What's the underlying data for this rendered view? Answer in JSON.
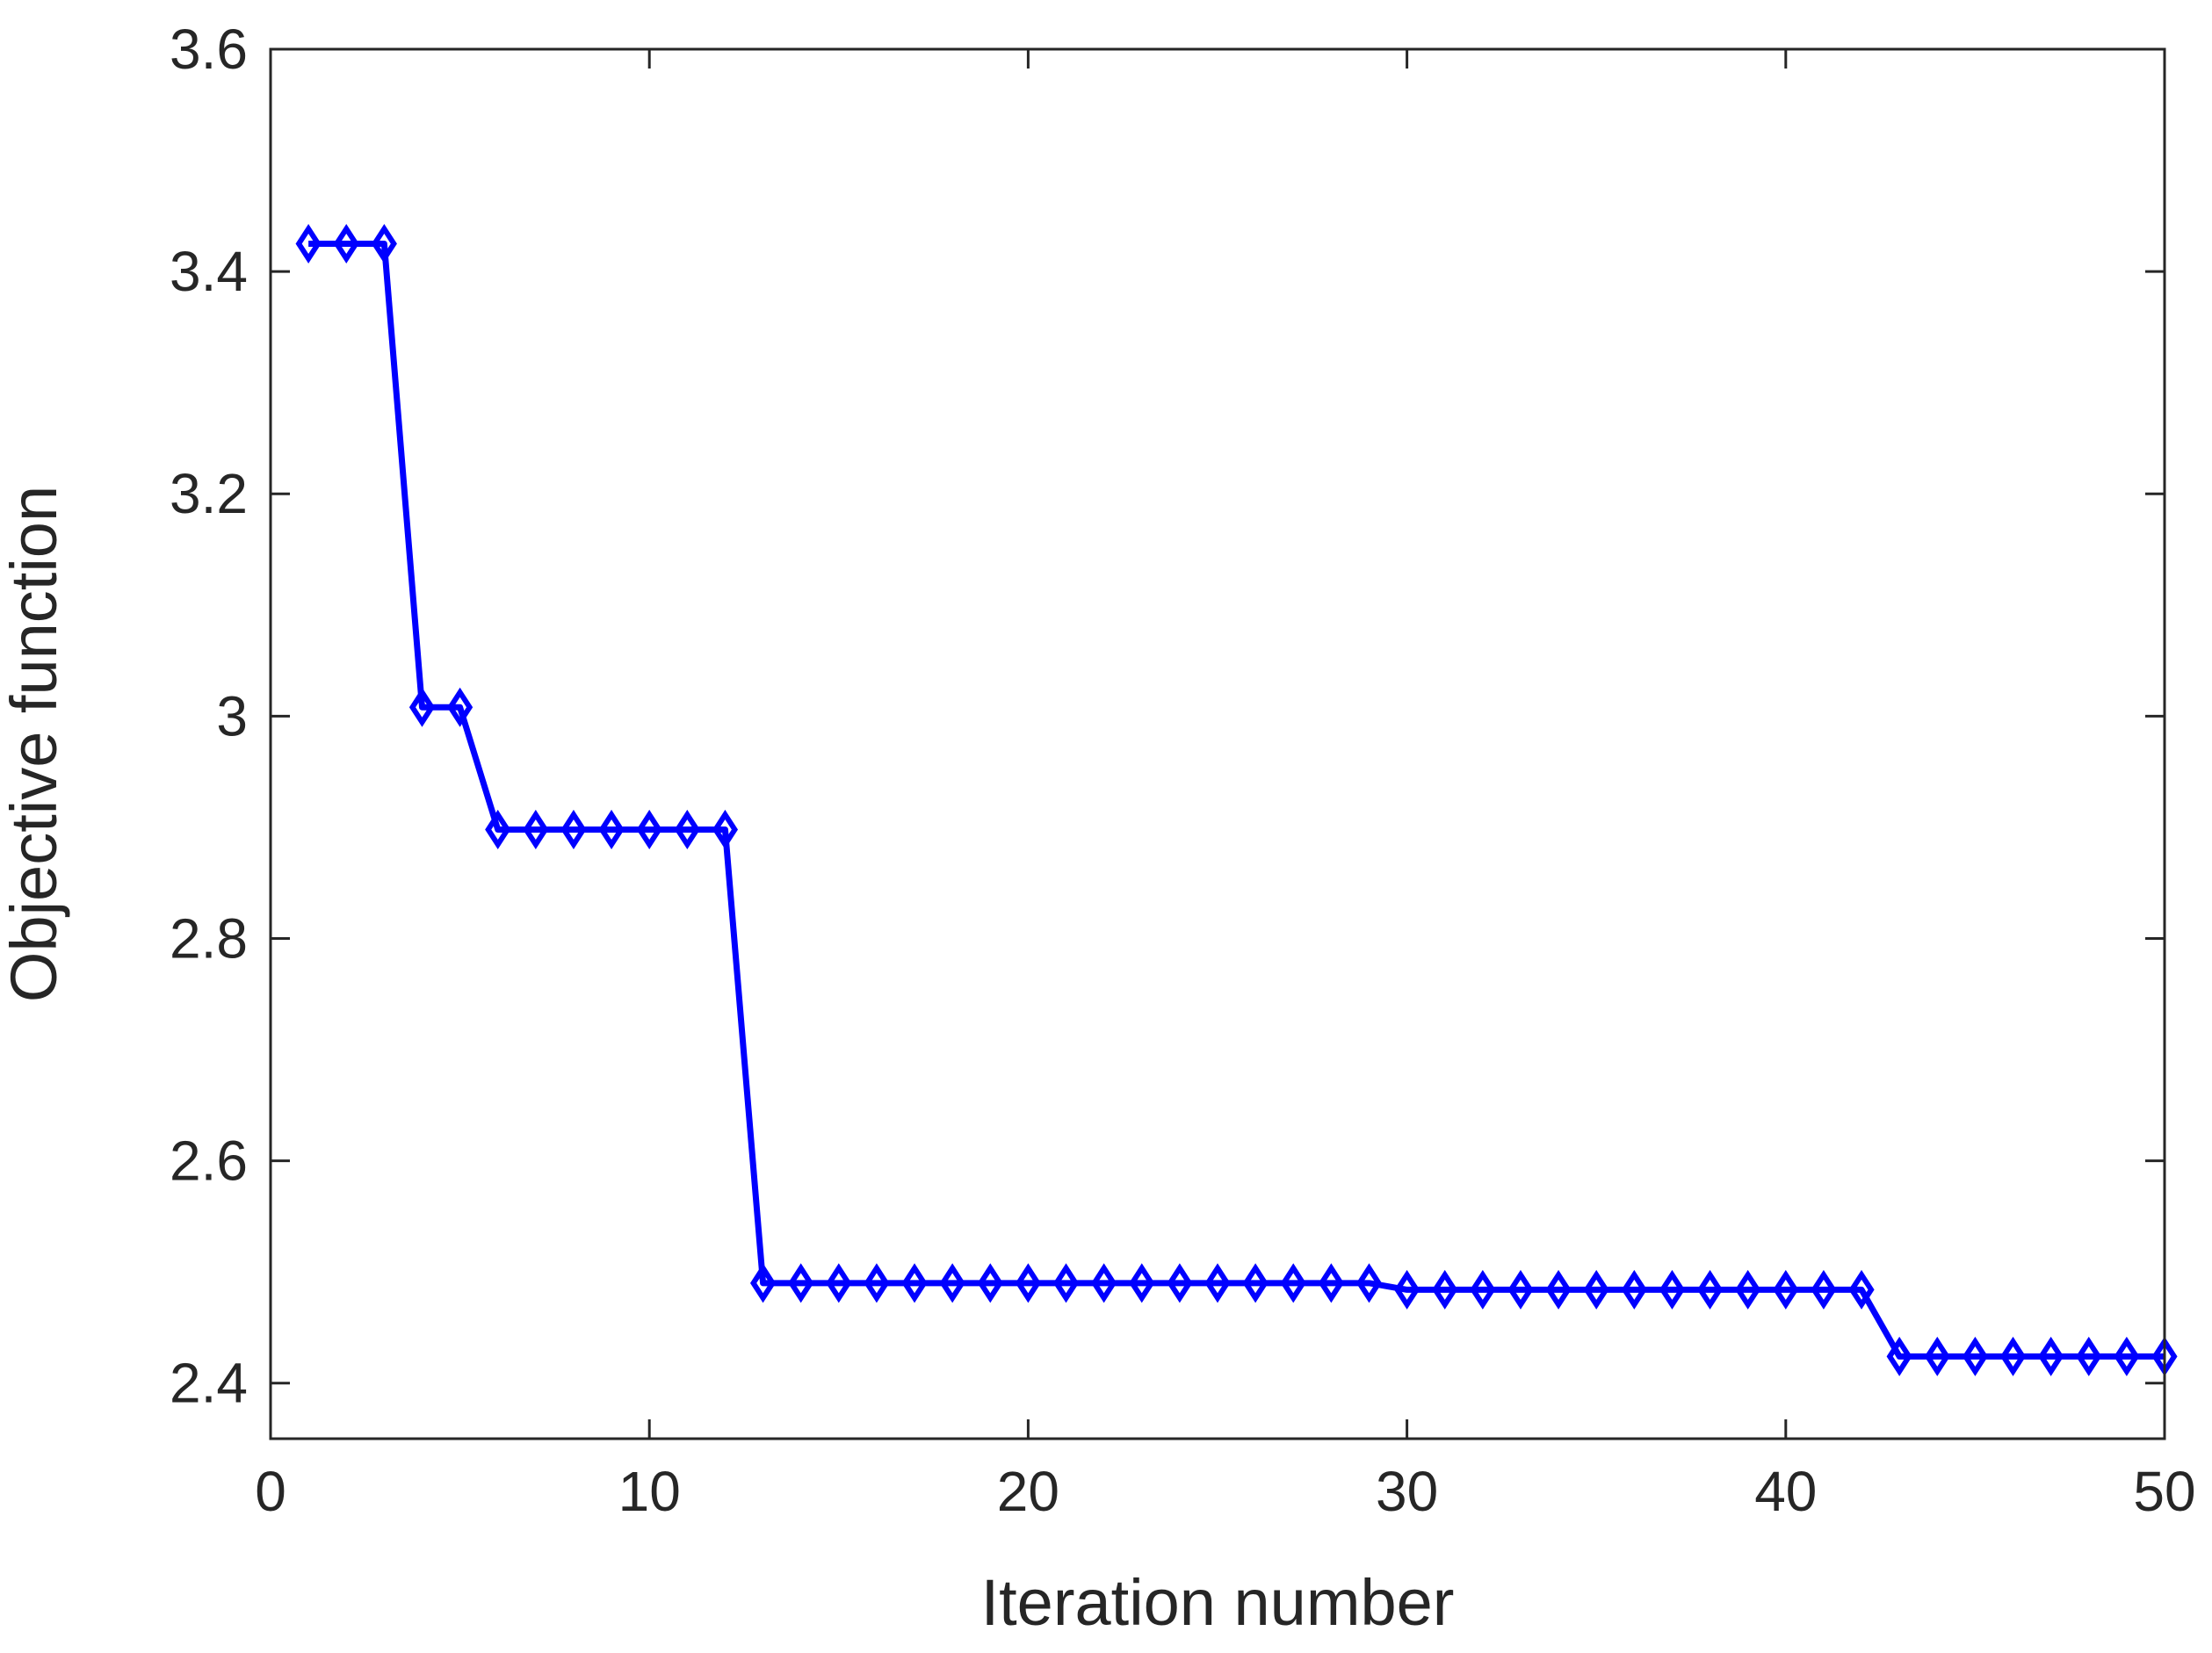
{
  "chart_data": {
    "type": "line",
    "title": "",
    "xlabel": "Iteration number",
    "ylabel": "Objective function",
    "xlim": [
      0,
      50
    ],
    "ylim": [
      2.35,
      3.6
    ],
    "xticks": [
      0,
      10,
      20,
      30,
      40,
      50
    ],
    "xtick_labels": [
      "0",
      "10",
      "20",
      "30",
      "40",
      "50"
    ],
    "yticks": [
      2.4,
      2.6,
      2.8,
      3.0,
      3.2,
      3.4,
      3.6
    ],
    "ytick_labels": [
      "2.4",
      "2.6",
      "2.8",
      "3",
      "3.2",
      "3.4",
      "3.6"
    ],
    "grid": false,
    "box": true,
    "legend": null,
    "series": [
      {
        "color": "#0000ff",
        "marker": "diamond",
        "x": [
          1,
          2,
          3,
          4,
          5,
          6,
          7,
          8,
          9,
          10,
          11,
          12,
          13,
          14,
          15,
          16,
          17,
          18,
          19,
          20,
          21,
          22,
          23,
          24,
          25,
          26,
          27,
          28,
          29,
          30,
          31,
          32,
          33,
          34,
          35,
          36,
          37,
          38,
          39,
          40,
          41,
          42,
          43,
          44,
          45,
          46,
          47,
          48,
          49,
          50
        ],
        "y": [
          3.425,
          3.425,
          3.425,
          3.008,
          3.008,
          2.898,
          2.898,
          2.898,
          2.898,
          2.898,
          2.898,
          2.898,
          2.49,
          2.49,
          2.49,
          2.49,
          2.49,
          2.49,
          2.49,
          2.49,
          2.49,
          2.49,
          2.49,
          2.49,
          2.49,
          2.49,
          2.49,
          2.49,
          2.49,
          2.484,
          2.484,
          2.484,
          2.484,
          2.484,
          2.484,
          2.484,
          2.484,
          2.484,
          2.484,
          2.484,
          2.484,
          2.484,
          2.424,
          2.424,
          2.424,
          2.424,
          2.424,
          2.424,
          2.424,
          2.424
        ]
      }
    ]
  }
}
